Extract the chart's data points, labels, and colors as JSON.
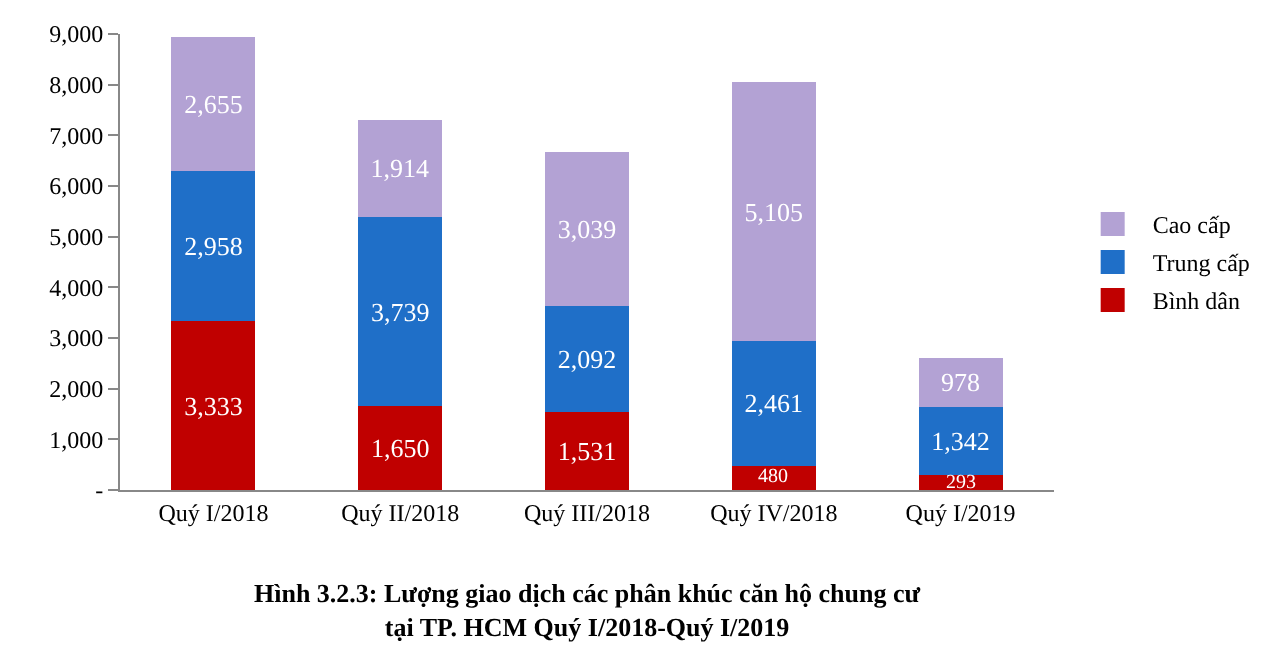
{
  "chart_data": {
    "type": "bar",
    "stacked": true,
    "title": "Hình 3.2.3: Lượng giao dịch các phân khúc căn hộ chung cư\ntại TP. HCM Quý I/2018-Quý I/2019",
    "categories": [
      "Quý I/2018",
      "Quý II/2018",
      "Quý III/2018",
      "Quý IV/2018",
      "Quý I/2019"
    ],
    "series": [
      {
        "name": "Bình dân",
        "color": "#c00000",
        "values": [
          3333,
          1650,
          1531,
          480,
          293
        ],
        "value_labels": [
          "3,333",
          "1,650",
          "1,531",
          "480",
          "293"
        ]
      },
      {
        "name": "Trung cấp",
        "color": "#1f6fc8",
        "values": [
          2958,
          3739,
          2092,
          2461,
          1342
        ],
        "value_labels": [
          "2,958",
          "3,739",
          "2,092",
          "2,461",
          "1,342"
        ]
      },
      {
        "name": "Cao cấp",
        "color": "#b3a2d4",
        "values": [
          2655,
          1914,
          3039,
          5105,
          978
        ],
        "value_labels": [
          "2,655",
          "1,914",
          "3,039",
          "5,105",
          "978"
        ]
      }
    ],
    "ylim": [
      0,
      9000
    ],
    "yticks": [
      {
        "value": 0,
        "label": "-"
      },
      {
        "value": 1000,
        "label": "1,000"
      },
      {
        "value": 2000,
        "label": "2,000"
      },
      {
        "value": 3000,
        "label": "3,000"
      },
      {
        "value": 4000,
        "label": "4,000"
      },
      {
        "value": 5000,
        "label": "5,000"
      },
      {
        "value": 6000,
        "label": "6,000"
      },
      {
        "value": 7000,
        "label": "7,000"
      },
      {
        "value": 8000,
        "label": "8,000"
      },
      {
        "value": 9000,
        "label": "9,000"
      }
    ],
    "legend": "right"
  }
}
